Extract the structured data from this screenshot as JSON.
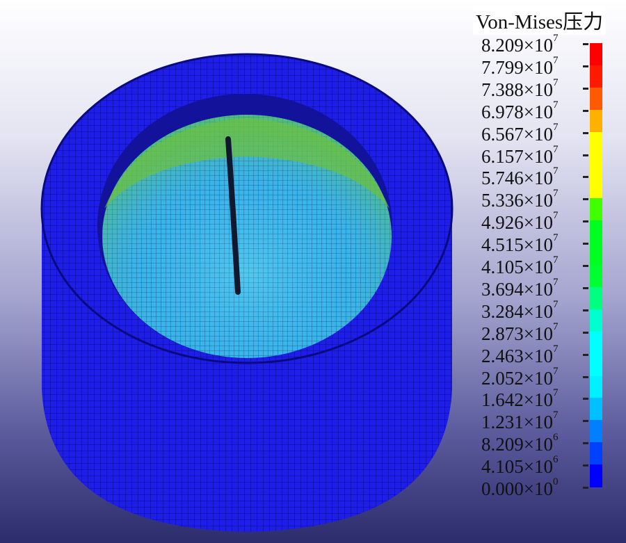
{
  "legend": {
    "title": "Von-Mises压力",
    "labels": [
      {
        "mantissa": "8.209",
        "exp": "7"
      },
      {
        "mantissa": "7.799",
        "exp": "7"
      },
      {
        "mantissa": "7.388",
        "exp": "7"
      },
      {
        "mantissa": "6.978",
        "exp": "7"
      },
      {
        "mantissa": "6.567",
        "exp": "7"
      },
      {
        "mantissa": "6.157",
        "exp": "7"
      },
      {
        "mantissa": "5.746",
        "exp": "7"
      },
      {
        "mantissa": "5.336",
        "exp": "7"
      },
      {
        "mantissa": "4.926",
        "exp": "7"
      },
      {
        "mantissa": "4.515",
        "exp": "7"
      },
      {
        "mantissa": "4.105",
        "exp": "7"
      },
      {
        "mantissa": "3.694",
        "exp": "7"
      },
      {
        "mantissa": "3.284",
        "exp": "7"
      },
      {
        "mantissa": "2.873",
        "exp": "7"
      },
      {
        "mantissa": "2.463",
        "exp": "7"
      },
      {
        "mantissa": "2.052",
        "exp": "7"
      },
      {
        "mantissa": "1.642",
        "exp": "7"
      },
      {
        "mantissa": "1.231",
        "exp": "7"
      },
      {
        "mantissa": "8.209",
        "exp": "6"
      },
      {
        "mantissa": "4.105",
        "exp": "6"
      },
      {
        "mantissa": "0.000",
        "exp": "0"
      }
    ],
    "times_symbol": "×10",
    "colors_top_to_bottom": [
      "#ff0000",
      "#ff1a00",
      "#ff5a00",
      "#ffb000",
      "#ffff00",
      "#ffff00",
      "#ffff00",
      "#40ff00",
      "#00ff20",
      "#00ff20",
      "#00ff30",
      "#00ff80",
      "#00ffd0",
      "#00ffff",
      "#00ffff",
      "#00f0ff",
      "#00c0ff",
      "#0080ff",
      "#0040ff",
      "#0000ff"
    ]
  },
  "model": {
    "outer_color": "#1a1ae0",
    "inner_colors": [
      "#20c0e0",
      "#40a0ff",
      "#60d080",
      "#30e0c0"
    ],
    "crack_color": "#101830"
  }
}
